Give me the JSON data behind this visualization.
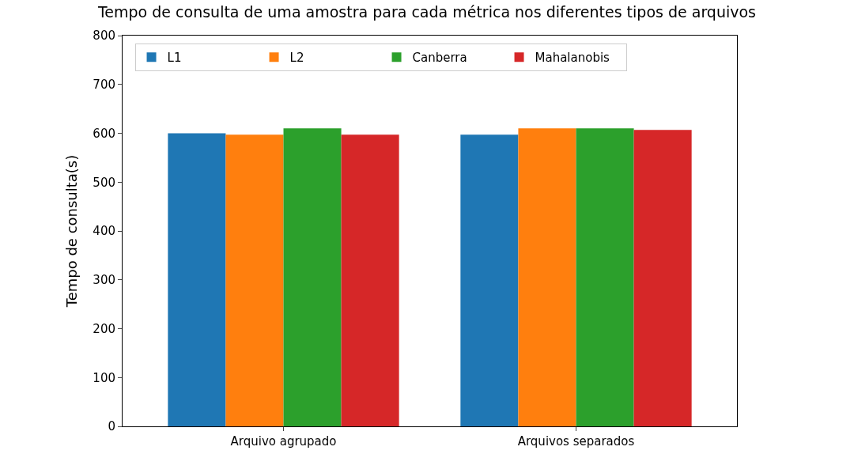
{
  "chart_data": {
    "type": "bar",
    "title": "Tempo de consulta de uma amostra para cada métrica nos diferentes tipos de arquivos",
    "ylabel": "Tempo de consulta(s)",
    "categories": [
      "Arquivo agrupado",
      "Arquivos separados"
    ],
    "series": [
      {
        "name": "L1",
        "color": "#1f77b4",
        "values": [
          600,
          597
        ]
      },
      {
        "name": "L2",
        "color": "#ff7f0e",
        "values": [
          597,
          610
        ]
      },
      {
        "name": "Canberra",
        "color": "#2ca02c",
        "values": [
          610,
          610
        ]
      },
      {
        "name": "Mahalanobis",
        "color": "#d62728",
        "values": [
          597,
          607
        ]
      }
    ],
    "ylim": [
      0,
      800
    ],
    "yticks": [
      0,
      100,
      200,
      300,
      400,
      500,
      600,
      700,
      800
    ],
    "legend": "top left",
    "grid": false
  }
}
